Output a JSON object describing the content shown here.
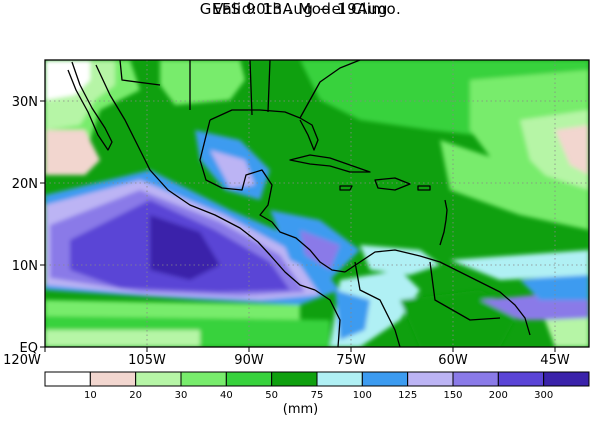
{
  "title": {
    "line1": "GEFS 90th . Model Climo.",
    "line2": "Valid: 13Aug − 19Aug"
  },
  "map": {
    "lon_range": [
      -120,
      -40
    ],
    "lat_range": [
      0,
      35
    ],
    "lat_ticks": [
      {
        "value": 30,
        "label": "30N"
      },
      {
        "value": 20,
        "label": "20N"
      },
      {
        "value": 10,
        "label": "10N"
      },
      {
        "value": 0,
        "label": "EQ"
      }
    ],
    "lon_ticks": [
      {
        "value": -120,
        "label": "120W"
      },
      {
        "value": -105,
        "label": "105W"
      },
      {
        "value": -90,
        "label": "90W"
      },
      {
        "value": -75,
        "label": "75W"
      },
      {
        "value": -60,
        "label": "60W"
      },
      {
        "value": -45,
        "label": "45W"
      }
    ],
    "gridlines": "dotted"
  },
  "colorbar": {
    "levels": [
      "10",
      "20",
      "30",
      "40",
      "50",
      "75",
      "100",
      "125",
      "150",
      "200",
      "300"
    ],
    "colors": [
      "#ffffff",
      "#f2d6cf",
      "#b6f5a6",
      "#78ec6c",
      "#37d23c",
      "#0fa00f",
      "#b0f0f4",
      "#3c9bf0",
      "#bcb4f4",
      "#8a7ae8",
      "#5a44d6",
      "#3a22aa"
    ],
    "units": "(mm)"
  }
}
